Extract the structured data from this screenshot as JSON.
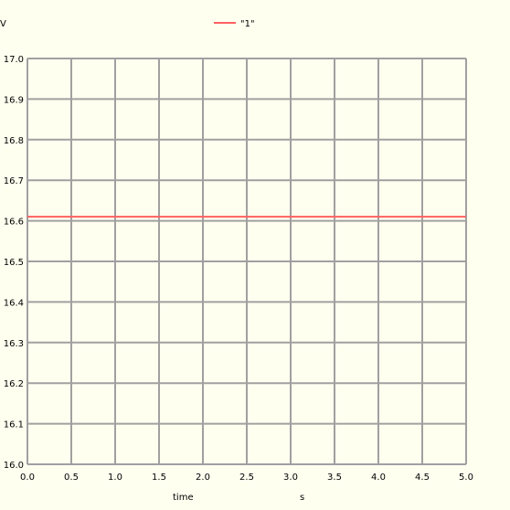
{
  "chart_data": {
    "type": "line",
    "title": "",
    "xlabel": "time",
    "xunit": "s",
    "ylabel": "V",
    "xlim": [
      0.0,
      5.0
    ],
    "ylim": [
      16.0,
      17.0
    ],
    "xticks": [
      "0.0",
      "0.5",
      "1.0",
      "1.5",
      "2.0",
      "2.5",
      "3.0",
      "3.5",
      "4.0",
      "4.5",
      "5.0"
    ],
    "yticks": [
      "16.0",
      "16.1",
      "16.2",
      "16.3",
      "16.4",
      "16.5",
      "16.6",
      "16.7",
      "16.8",
      "16.9",
      "17.0"
    ],
    "grid": true,
    "legend_position": "top-center",
    "series": [
      {
        "name": "\"1\"",
        "color": "#ff6060",
        "x": [
          0.0,
          5.0
        ],
        "y": [
          16.61,
          16.61
        ]
      }
    ]
  }
}
